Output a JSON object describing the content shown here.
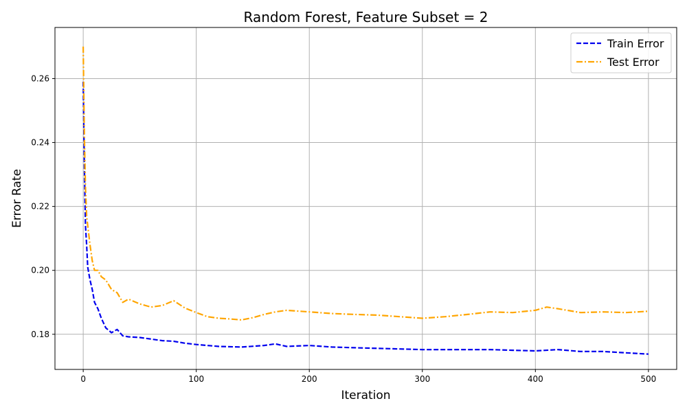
{
  "chart_data": {
    "type": "line",
    "title": "Random Forest, Feature Subset = 2",
    "xlabel": "Iteration",
    "ylabel": "Error Rate",
    "xlim": [
      -25,
      525
    ],
    "ylim": [
      0.169,
      0.276
    ],
    "xticks": [
      0,
      100,
      200,
      300,
      400,
      500
    ],
    "yticks": [
      0.18,
      0.2,
      0.22,
      0.24,
      0.26
    ],
    "xtick_labels": [
      "0",
      "100",
      "200",
      "300",
      "400",
      "500"
    ],
    "ytick_labels": [
      "0.18",
      "0.20",
      "0.22",
      "0.24",
      "0.26"
    ],
    "grid": true,
    "legend_position": "top-right",
    "series": [
      {
        "name": "Train Error",
        "color": "#0000ee",
        "style": "dashed",
        "x": [
          0,
          1,
          2,
          3,
          4,
          6,
          8,
          10,
          13,
          16,
          20,
          25,
          30,
          35,
          40,
          50,
          60,
          70,
          80,
          90,
          100,
          110,
          120,
          140,
          160,
          170,
          180,
          200,
          220,
          240,
          260,
          280,
          300,
          320,
          340,
          360,
          380,
          400,
          420,
          440,
          460,
          480,
          500
        ],
        "y": [
          0.259,
          0.233,
          0.214,
          0.208,
          0.201,
          0.197,
          0.194,
          0.19,
          0.188,
          0.185,
          0.182,
          0.1805,
          0.1815,
          0.1795,
          0.1792,
          0.179,
          0.1785,
          0.178,
          0.1778,
          0.1772,
          0.1768,
          0.1765,
          0.1762,
          0.176,
          0.1765,
          0.177,
          0.1762,
          0.1765,
          0.176,
          0.1758,
          0.1756,
          0.1754,
          0.1752,
          0.1752,
          0.1752,
          0.1752,
          0.175,
          0.1748,
          0.1752,
          0.1746,
          0.1746,
          0.1742,
          0.1738
        ]
      },
      {
        "name": "Test Error",
        "color": "#ffa500",
        "style": "dashdot",
        "x": [
          0,
          1,
          2,
          3,
          4,
          6,
          8,
          10,
          13,
          16,
          20,
          25,
          30,
          35,
          40,
          50,
          60,
          70,
          80,
          90,
          100,
          110,
          120,
          130,
          140,
          150,
          160,
          170,
          180,
          200,
          220,
          240,
          260,
          280,
          300,
          320,
          340,
          360,
          380,
          400,
          410,
          420,
          440,
          460,
          480,
          500
        ],
        "y": [
          0.27,
          0.242,
          0.226,
          0.217,
          0.214,
          0.208,
          0.203,
          0.2,
          0.2,
          0.198,
          0.197,
          0.194,
          0.193,
          0.19,
          0.191,
          0.1895,
          0.1885,
          0.189,
          0.1905,
          0.1882,
          0.1868,
          0.1855,
          0.185,
          0.1848,
          0.1845,
          0.1852,
          0.1862,
          0.187,
          0.1875,
          0.187,
          0.1865,
          0.1862,
          0.186,
          0.1855,
          0.185,
          0.1855,
          0.1862,
          0.187,
          0.1868,
          0.1875,
          0.1885,
          0.188,
          0.1868,
          0.187,
          0.1868,
          0.1872
        ]
      }
    ]
  }
}
